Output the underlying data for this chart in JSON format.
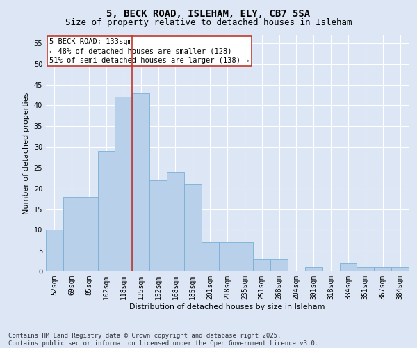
{
  "title_line1": "5, BECK ROAD, ISLEHAM, ELY, CB7 5SA",
  "title_line2": "Size of property relative to detached houses in Isleham",
  "xlabel": "Distribution of detached houses by size in Isleham",
  "ylabel": "Number of detached properties",
  "categories": [
    "52sqm",
    "69sqm",
    "85sqm",
    "102sqm",
    "118sqm",
    "135sqm",
    "152sqm",
    "168sqm",
    "185sqm",
    "201sqm",
    "218sqm",
    "235sqm",
    "251sqm",
    "268sqm",
    "284sqm",
    "301sqm",
    "318sqm",
    "334sqm",
    "351sqm",
    "367sqm",
    "384sqm"
  ],
  "values": [
    10,
    18,
    18,
    29,
    42,
    43,
    22,
    24,
    21,
    7,
    7,
    7,
    3,
    3,
    0,
    1,
    0,
    2,
    1,
    1,
    1
  ],
  "bar_color": "#b8d0ea",
  "bar_edgecolor": "#7aafd4",
  "vline_index": 5,
  "vline_color": "#c0392b",
  "annotation_text": "5 BECK ROAD: 133sqm\n← 48% of detached houses are smaller (128)\n51% of semi-detached houses are larger (138) →",
  "annotation_box_color": "#ffffff",
  "annotation_box_edgecolor": "#c0392b",
  "ylim": [
    0,
    57
  ],
  "yticks": [
    0,
    5,
    10,
    15,
    20,
    25,
    30,
    35,
    40,
    45,
    50,
    55
  ],
  "background_color": "#dce6f5",
  "grid_color": "#ffffff",
  "footer_line1": "Contains HM Land Registry data © Crown copyright and database right 2025.",
  "footer_line2": "Contains public sector information licensed under the Open Government Licence v3.0.",
  "title_fontsize": 10,
  "subtitle_fontsize": 9,
  "axis_label_fontsize": 8,
  "tick_fontsize": 7,
  "annotation_fontsize": 7.5,
  "footer_fontsize": 6.5
}
